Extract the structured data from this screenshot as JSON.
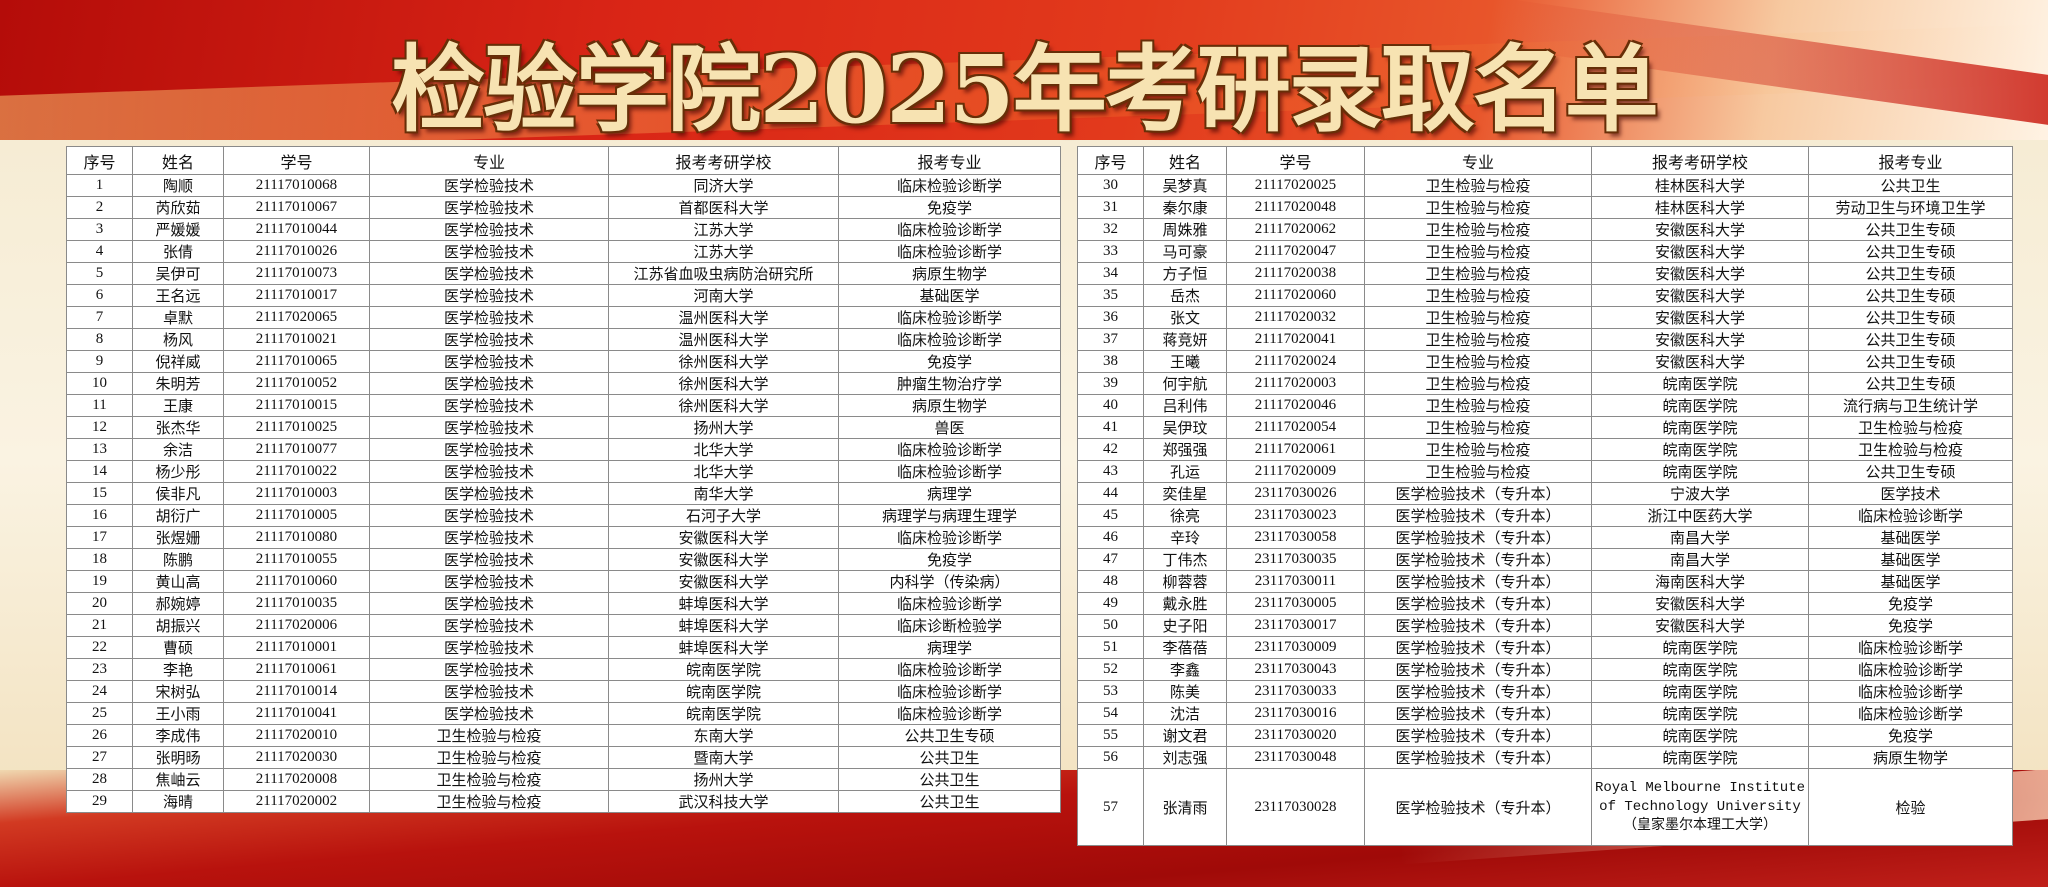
{
  "title": "检验学院2025年考研录取名单",
  "columns": [
    "序号",
    "姓名",
    "学号",
    "专业",
    "报考考研学校",
    "报考专业"
  ],
  "left_rows": [
    [
      "1",
      "陶顺",
      "21117010068",
      "医学检验技术",
      "同济大学",
      "临床检验诊断学"
    ],
    [
      "2",
      "芮欣茹",
      "21117010067",
      "医学检验技术",
      "首都医科大学",
      "免疫学"
    ],
    [
      "3",
      "严媛媛",
      "21117010044",
      "医学检验技术",
      "江苏大学",
      "临床检验诊断学"
    ],
    [
      "4",
      "张倩",
      "21117010026",
      "医学检验技术",
      "江苏大学",
      "临床检验诊断学"
    ],
    [
      "5",
      "吴伊可",
      "21117010073",
      "医学检验技术",
      "江苏省血吸虫病防治研究所",
      "病原生物学"
    ],
    [
      "6",
      "王名远",
      "21117010017",
      "医学检验技术",
      "河南大学",
      "基础医学"
    ],
    [
      "7",
      "卓默",
      "21117020065",
      "医学检验技术",
      "温州医科大学",
      "临床检验诊断学"
    ],
    [
      "8",
      "杨风",
      "21117010021",
      "医学检验技术",
      "温州医科大学",
      "临床检验诊断学"
    ],
    [
      "9",
      "倪祥威",
      "21117010065",
      "医学检验技术",
      "徐州医科大学",
      "免疫学"
    ],
    [
      "10",
      "朱明芳",
      "21117010052",
      "医学检验技术",
      "徐州医科大学",
      "肿瘤生物治疗学"
    ],
    [
      "11",
      "王康",
      "21117010015",
      "医学检验技术",
      "徐州医科大学",
      "病原生物学"
    ],
    [
      "12",
      "张杰华",
      "21117010025",
      "医学检验技术",
      "扬州大学",
      "兽医"
    ],
    [
      "13",
      "余洁",
      "21117010077",
      "医学检验技术",
      "北华大学",
      "临床检验诊断学"
    ],
    [
      "14",
      "杨少彤",
      "21117010022",
      "医学检验技术",
      "北华大学",
      "临床检验诊断学"
    ],
    [
      "15",
      "侯非凡",
      "21117010003",
      "医学检验技术",
      "南华大学",
      "病理学"
    ],
    [
      "16",
      "胡衍广",
      "21117010005",
      "医学检验技术",
      "石河子大学",
      "病理学与病理生理学"
    ],
    [
      "17",
      "张煜姗",
      "21117010080",
      "医学检验技术",
      "安徽医科大学",
      "临床检验诊断学"
    ],
    [
      "18",
      "陈鹏",
      "21117010055",
      "医学检验技术",
      "安徽医科大学",
      "免疫学"
    ],
    [
      "19",
      "黄山高",
      "21117010060",
      "医学检验技术",
      "安徽医科大学",
      "内科学（传染病）"
    ],
    [
      "20",
      "郝婉婷",
      "21117010035",
      "医学检验技术",
      "蚌埠医科大学",
      "临床检验诊断学"
    ],
    [
      "21",
      "胡振兴",
      "21117020006",
      "医学检验技术",
      "蚌埠医科大学",
      "临床诊断检验学"
    ],
    [
      "22",
      "曹硕",
      "21117010001",
      "医学检验技术",
      "蚌埠医科大学",
      "病理学"
    ],
    [
      "23",
      "李艳",
      "21117010061",
      "医学检验技术",
      "皖南医学院",
      "临床检验诊断学"
    ],
    [
      "24",
      "宋树弘",
      "21117010014",
      "医学检验技术",
      "皖南医学院",
      "临床检验诊断学"
    ],
    [
      "25",
      "王小雨",
      "21117010041",
      "医学检验技术",
      "皖南医学院",
      "临床检验诊断学"
    ],
    [
      "26",
      "李成伟",
      "21117020010",
      "卫生检验与检疫",
      "东南大学",
      "公共卫生专硕"
    ],
    [
      "27",
      "张明旸",
      "21117020030",
      "卫生检验与检疫",
      "暨南大学",
      "公共卫生"
    ],
    [
      "28",
      "焦岫云",
      "21117020008",
      "卫生检验与检疫",
      "扬州大学",
      "公共卫生"
    ],
    [
      "29",
      "海晴",
      "21117020002",
      "卫生检验与检疫",
      "武汉科技大学",
      "公共卫生"
    ]
  ],
  "right_rows": [
    [
      "30",
      "吴梦真",
      "21117020025",
      "卫生检验与检疫",
      "桂林医科大学",
      "公共卫生"
    ],
    [
      "31",
      "秦尔康",
      "21117020048",
      "卫生检验与检疫",
      "桂林医科大学",
      "劳动卫生与环境卫生学"
    ],
    [
      "32",
      "周姝雅",
      "21117020062",
      "卫生检验与检疫",
      "安徽医科大学",
      "公共卫生专硕"
    ],
    [
      "33",
      "马可豪",
      "21117020047",
      "卫生检验与检疫",
      "安徽医科大学",
      "公共卫生专硕"
    ],
    [
      "34",
      "方子恒",
      "21117020038",
      "卫生检验与检疫",
      "安徽医科大学",
      "公共卫生专硕"
    ],
    [
      "35",
      "岳杰",
      "21117020060",
      "卫生检验与检疫",
      "安徽医科大学",
      "公共卫生专硕"
    ],
    [
      "36",
      "张文",
      "21117020032",
      "卫生检验与检疫",
      "安徽医科大学",
      "公共卫生专硕"
    ],
    [
      "37",
      "蒋竞妍",
      "21117020041",
      "卫生检验与检疫",
      "安徽医科大学",
      "公共卫生专硕"
    ],
    [
      "38",
      "王曦",
      "21117020024",
      "卫生检验与检疫",
      "安徽医科大学",
      "公共卫生专硕"
    ],
    [
      "39",
      "何宇航",
      "21117020003",
      "卫生检验与检疫",
      "皖南医学院",
      "公共卫生专硕"
    ],
    [
      "40",
      "吕利伟",
      "21117020046",
      "卫生检验与检疫",
      "皖南医学院",
      "流行病与卫生统计学"
    ],
    [
      "41",
      "吴伊玟",
      "21117020054",
      "卫生检验与检疫",
      "皖南医学院",
      "卫生检验与检疫"
    ],
    [
      "42",
      "郑强强",
      "21117020061",
      "卫生检验与检疫",
      "皖南医学院",
      "卫生检验与检疫"
    ],
    [
      "43",
      "孔运",
      "21117020009",
      "卫生检验与检疫",
      "皖南医学院",
      "公共卫生专硕"
    ],
    [
      "44",
      "奕佳星",
      "23117030026",
      "医学检验技术（专升本）",
      "宁波大学",
      "医学技术"
    ],
    [
      "45",
      "徐亮",
      "23117030023",
      "医学检验技术（专升本）",
      "浙江中医药大学",
      "临床检验诊断学"
    ],
    [
      "46",
      "辛玲",
      "23117030058",
      "医学检验技术（专升本）",
      "南昌大学",
      "基础医学"
    ],
    [
      "47",
      "丁伟杰",
      "23117030035",
      "医学检验技术（专升本）",
      "南昌大学",
      "基础医学"
    ],
    [
      "48",
      "柳蓉蓉",
      "23117030011",
      "医学检验技术（专升本）",
      "海南医科大学",
      "基础医学"
    ],
    [
      "49",
      "戴永胜",
      "23117030005",
      "医学检验技术（专升本）",
      "安徽医科大学",
      "免疫学"
    ],
    [
      "50",
      "史子阳",
      "23117030017",
      "医学检验技术（专升本）",
      "安徽医科大学",
      "免疫学"
    ],
    [
      "51",
      "李蓓蓓",
      "23117030009",
      "医学检验技术（专升本）",
      "皖南医学院",
      "临床检验诊断学"
    ],
    [
      "52",
      "李鑫",
      "23117030043",
      "医学检验技术（专升本）",
      "皖南医学院",
      "临床检验诊断学"
    ],
    [
      "53",
      "陈美",
      "23117030033",
      "医学检验技术（专升本）",
      "皖南医学院",
      "临床检验诊断学"
    ],
    [
      "54",
      "沈洁",
      "23117030016",
      "医学检验技术（专升本）",
      "皖南医学院",
      "临床检验诊断学"
    ],
    [
      "55",
      "谢文君",
      "23117030020",
      "医学检验技术（专升本）",
      "皖南医学院",
      "免疫学"
    ],
    [
      "56",
      "刘志强",
      "23117030048",
      "医学检验技术（专升本）",
      "皖南医学院",
      "病原生物学"
    ],
    [
      "57",
      "张清雨",
      "23117030028",
      "医学检验技术（专升本）",
      "Royal Melbourne Institute of Technology University（皇家墨尔本理工大学）",
      "检验"
    ]
  ],
  "colors": {
    "title_fill": "#f7e3b2",
    "title_outline": "#6b3008",
    "banner_red": "#c8120e",
    "table_border": "#8a8a8a"
  }
}
